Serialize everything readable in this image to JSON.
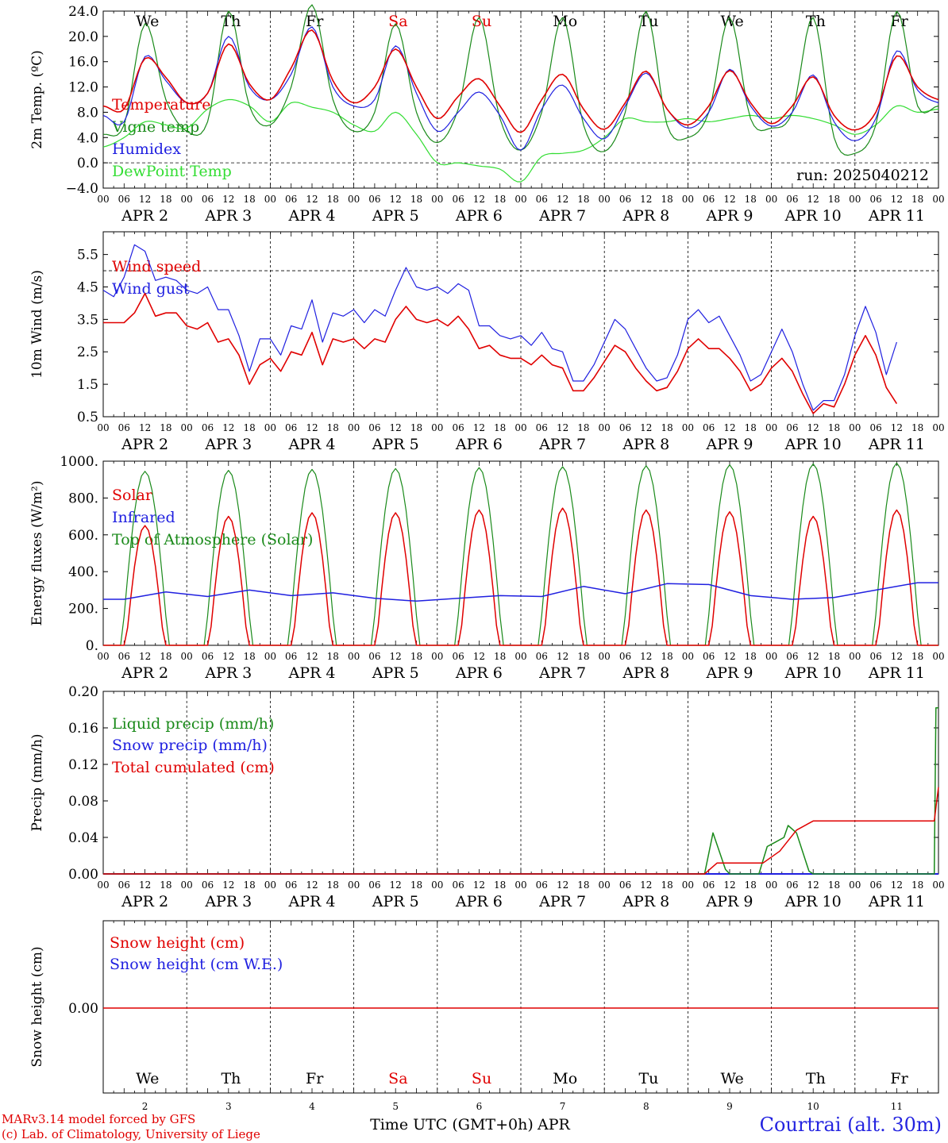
{
  "day_names": [
    "We",
    "Th",
    "Fr",
    "Sa",
    "Su",
    "Mo",
    "Tu",
    "We",
    "Th",
    "Fr"
  ],
  "weekend_days": [
    "Sa",
    "Su"
  ],
  "date_labels": [
    "APR  2",
    "APR  3",
    "APR  4",
    "APR  5",
    "APR  6",
    "APR  7",
    "APR  8",
    "APR  9",
    "APR 10",
    "APR 11"
  ],
  "day_numbers": [
    "2",
    "3",
    "4",
    "5",
    "6",
    "7",
    "8",
    "9",
    "10",
    "11"
  ],
  "hour_ticks": [
    "00",
    "06",
    "12",
    "18"
  ],
  "hour_tick_end": "00",
  "x_axis_title": "Time UTC (GMT+0h)",
  "x_axis_month": "APR",
  "footer": {
    "model_line": "MARv3.14 model forced by GFS",
    "credit_line": "(c) Lab. of Climatology, University of Liege",
    "station": "Courtrai (alt. 30m)"
  },
  "colors": {
    "red": "#e00000",
    "blue": "#2020e0",
    "green": "#1a8a1a",
    "lightgreen": "#33dd33"
  },
  "chart_data": [
    {
      "type": "line",
      "ylabel": "2m Temp. (ºC)",
      "ylim": [
        -4,
        24
      ],
      "yticks": [
        "24.0",
        "20.0",
        "16.0",
        "12.0",
        "8.0",
        "4.0",
        "0.0",
        "−4.0"
      ],
      "annotation": "run: 2025040212",
      "reference_line": 0,
      "x_days": [
        0,
        0.25,
        0.5,
        0.75,
        1,
        1.25,
        1.5,
        1.75,
        2,
        2.25,
        2.5,
        2.75,
        3,
        3.25,
        3.5,
        3.75,
        4,
        4.25,
        4.5,
        4.75,
        5,
        5.25,
        5.5,
        5.75,
        6,
        6.25,
        6.5,
        6.75,
        7,
        7.25,
        7.5,
        7.75,
        8,
        8.25,
        8.5,
        8.75,
        9,
        9.25,
        9.5,
        9.75,
        10
      ],
      "series": [
        {
          "name": "Temperature",
          "color": "red",
          "values": [
            9.0,
            8.5,
            16.5,
            13.5,
            9.5,
            11.0,
            18.8,
            12.5,
            10.0,
            15.0,
            21.0,
            13.0,
            9.5,
            12.0,
            18.0,
            12.0,
            7.0,
            10.5,
            13.3,
            9.0,
            4.8,
            10.0,
            14.0,
            8.5,
            5.3,
            9.5,
            14.5,
            8.5,
            6.0,
            9.0,
            14.6,
            9.5,
            6.2,
            9.0,
            13.6,
            7.5,
            5.2,
            8.0,
            16.9,
            12.0,
            10.0
          ]
        },
        {
          "name": "Vigne temp",
          "color": "green",
          "values": [
            4.5,
            6.0,
            22.0,
            10.0,
            5.0,
            6.5,
            24.0,
            9.0,
            6.0,
            12.0,
            25.0,
            10.0,
            5.0,
            8.0,
            22.0,
            8.0,
            3.2,
            8.5,
            23.0,
            7.0,
            2.0,
            8.0,
            23.0,
            6.0,
            1.8,
            8.0,
            24.0,
            6.0,
            4.0,
            8.0,
            23.0,
            7.0,
            5.5,
            8.0,
            23.0,
            4.0,
            1.5,
            6.0,
            24.0,
            9.0,
            9.0
          ]
        },
        {
          "name": "Humidex",
          "color": "blue",
          "values": [
            7.5,
            6.5,
            16.8,
            13.0,
            9.5,
            11.0,
            20.0,
            12.0,
            10.0,
            14.0,
            21.5,
            12.0,
            9.0,
            10.0,
            18.5,
            11.0,
            5.0,
            8.0,
            11.2,
            7.5,
            2.0,
            8.5,
            12.3,
            7.0,
            3.8,
            9.0,
            14.2,
            8.5,
            5.5,
            8.0,
            14.8,
            9.0,
            5.8,
            8.0,
            13.9,
            6.5,
            3.5,
            7.0,
            17.7,
            11.5,
            9.5
          ]
        },
        {
          "name": "DewPoint Temp",
          "color": "lightgreen",
          "values": [
            2.5,
            4.0,
            6.5,
            6.0,
            5.5,
            8.5,
            10.0,
            9.0,
            6.5,
            9.5,
            8.8,
            8.0,
            6.0,
            5.0,
            8.0,
            4.5,
            0.0,
            0.0,
            -0.5,
            -1.0,
            -3.0,
            1.0,
            1.5,
            2.0,
            4.0,
            7.0,
            6.5,
            6.5,
            7.0,
            6.5,
            7.0,
            7.5,
            7.0,
            7.5,
            7.0,
            6.0,
            4.5,
            6.0,
            9.0,
            8.0,
            8.5
          ]
        }
      ]
    },
    {
      "type": "line",
      "ylabel": "10m Wind (m/s)",
      "ylim": [
        0.5,
        6.2
      ],
      "yticks": [
        "5.5",
        "4.5",
        "3.5",
        "2.5",
        "1.5",
        "0.5"
      ],
      "reference_line": 5.0,
      "x_days": [
        0,
        0.125,
        0.25,
        0.375,
        0.5,
        0.625,
        0.75,
        0.875,
        1,
        1.125,
        1.25,
        1.375,
        1.5,
        1.625,
        1.75,
        1.875,
        2,
        2.125,
        2.25,
        2.375,
        2.5,
        2.625,
        2.75,
        2.875,
        3,
        3.125,
        3.25,
        3.375,
        3.5,
        3.625,
        3.75,
        3.875,
        4,
        4.125,
        4.25,
        4.375,
        4.5,
        4.625,
        4.75,
        4.875,
        5,
        5.125,
        5.25,
        5.375,
        5.5,
        5.625,
        5.75,
        5.875,
        6,
        6.125,
        6.25,
        6.375,
        6.5,
        6.625,
        6.75,
        6.875,
        7,
        7.125,
        7.25,
        7.375,
        7.5,
        7.625,
        7.75,
        7.875,
        8,
        8.125,
        8.25,
        8.375,
        8.5,
        8.625,
        8.75,
        8.875,
        9,
        9.125,
        9.25,
        9.375,
        9.5,
        9.625,
        9.75,
        9.875,
        10
      ],
      "series": [
        {
          "name": "Wind speed",
          "color": "red",
          "values": [
            3.4,
            3.4,
            3.4,
            3.7,
            4.3,
            3.6,
            3.7,
            3.7,
            3.3,
            3.2,
            3.4,
            2.8,
            2.9,
            2.4,
            1.5,
            2.1,
            2.3,
            1.9,
            2.5,
            2.4,
            3.1,
            2.1,
            2.9,
            2.8,
            2.9,
            2.6,
            2.9,
            2.8,
            3.5,
            3.9,
            3.5,
            3.4,
            3.5,
            3.3,
            3.6,
            3.2,
            2.6,
            2.7,
            2.4,
            2.3,
            2.3,
            2.1,
            2.4,
            2.1,
            2.0,
            1.3,
            1.3,
            1.7,
            2.2,
            2.7,
            2.5,
            2.0,
            1.6,
            1.3,
            1.4,
            1.9,
            2.6,
            2.9,
            2.6,
            2.6,
            2.3,
            1.9,
            1.3,
            1.5,
            2.0,
            2.3,
            1.9,
            1.2,
            0.6,
            0.9,
            0.8,
            1.5,
            2.4,
            3.0,
            2.4,
            1.4,
            0.9
          ]
        },
        {
          "name": "Wind gust",
          "color": "blue",
          "values": [
            4.4,
            4.2,
            4.8,
            5.8,
            5.6,
            4.7,
            4.8,
            4.7,
            4.4,
            4.3,
            4.5,
            3.8,
            3.8,
            3.0,
            1.9,
            2.9,
            2.9,
            2.4,
            3.3,
            3.2,
            4.1,
            2.8,
            3.7,
            3.6,
            3.8,
            3.4,
            3.8,
            3.6,
            4.4,
            5.1,
            4.5,
            4.4,
            4.5,
            4.3,
            4.6,
            4.4,
            3.3,
            3.3,
            3.0,
            2.9,
            3.0,
            2.7,
            3.1,
            2.6,
            2.5,
            1.6,
            1.6,
            2.1,
            2.8,
            3.5,
            3.2,
            2.6,
            2.0,
            1.6,
            1.7,
            2.4,
            3.5,
            3.8,
            3.4,
            3.6,
            3.0,
            2.4,
            1.6,
            1.8,
            2.5,
            3.2,
            2.5,
            1.5,
            0.7,
            1.0,
            1.0,
            1.8,
            3.0,
            3.9,
            3.1,
            1.8,
            2.8
          ]
        }
      ]
    },
    {
      "type": "line",
      "ylabel": "Energy fluxes (W/m²)",
      "ylim": [
        0,
        1000
      ],
      "yticks": [
        "1000.",
        "800.",
        "600.",
        "400.",
        "200.",
        "0."
      ],
      "series": [
        {
          "name": "Solar",
          "color": "red",
          "peaks": [
            650,
            700,
            720,
            720,
            735,
            745,
            735,
            725,
            700,
            735
          ]
        },
        {
          "name": "Infrared",
          "color": "blue",
          "daily_values": [
            250,
            290,
            265,
            300,
            270,
            285,
            255,
            240,
            255,
            270,
            265,
            320,
            280,
            335,
            330,
            270,
            250,
            260,
            300,
            340
          ]
        },
        {
          "name": "Top of Atmosphere (Solar)",
          "color": "green",
          "peaks": [
            945,
            950,
            955,
            960,
            965,
            970,
            975,
            980,
            985,
            990
          ]
        }
      ]
    },
    {
      "type": "line",
      "ylabel": "Precip (mm/h)",
      "ylim": [
        0,
        0.2
      ],
      "yticks": [
        "0.20",
        "0.16",
        "0.12",
        "0.08",
        "0.04",
        "0.00"
      ],
      "series": [
        {
          "name": "Liquid precip (mm/h)",
          "color": "green",
          "points": [
            [
              0,
              0
            ],
            [
              7.2,
              0
            ],
            [
              7.3,
              0.045
            ],
            [
              7.45,
              0.005
            ],
            [
              7.5,
              0
            ],
            [
              7.85,
              0
            ],
            [
              7.95,
              0.03
            ],
            [
              8.05,
              0.035
            ],
            [
              8.15,
              0.04
            ],
            [
              8.2,
              0.053
            ],
            [
              8.3,
              0.045
            ],
            [
              8.45,
              0.003
            ],
            [
              8.5,
              0
            ],
            [
              9.95,
              0
            ],
            [
              9.97,
              0.182
            ],
            [
              10,
              0.182
            ]
          ]
        },
        {
          "name": "Snow precip (mm/h)",
          "color": "blue",
          "points": [
            [
              0,
              0
            ],
            [
              10,
              0
            ]
          ]
        },
        {
          "name": "Total cumulated (cm)",
          "color": "red",
          "points": [
            [
              0,
              0
            ],
            [
              7.2,
              0
            ],
            [
              7.35,
              0.012
            ],
            [
              7.9,
              0.012
            ],
            [
              8.1,
              0.025
            ],
            [
              8.3,
              0.048
            ],
            [
              8.5,
              0.058
            ],
            [
              9.95,
              0.058
            ],
            [
              10,
              0.095
            ]
          ]
        }
      ]
    },
    {
      "type": "line",
      "ylabel": "Snow height (cm)",
      "yticks": [
        "0.00"
      ],
      "series": [
        {
          "name": "Snow height (cm)",
          "color": "red",
          "values": [
            0,
            0
          ]
        },
        {
          "name": "Snow height (cm W.E.)",
          "color": "blue",
          "values": [
            0,
            0
          ]
        }
      ]
    }
  ]
}
